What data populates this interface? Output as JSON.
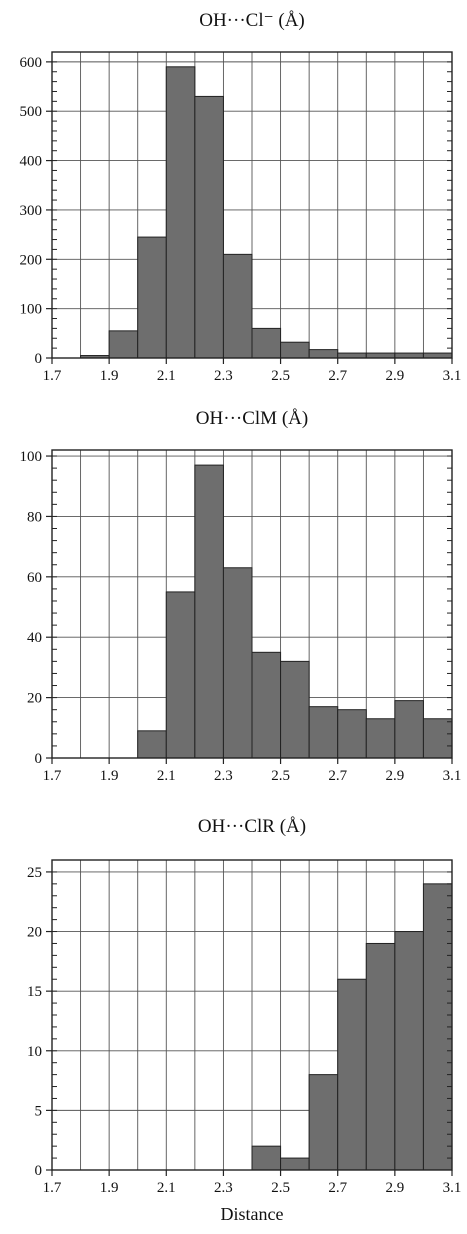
{
  "chart_data": [
    {
      "type": "bar",
      "title": "OH···Cl⁻ (Å)",
      "bin_edges": [
        1.7,
        1.8,
        1.9,
        2.0,
        2.1,
        2.2,
        2.3,
        2.4,
        2.5,
        2.6,
        2.7,
        2.8,
        2.9,
        3.0,
        3.1
      ],
      "values": [
        0,
        5,
        55,
        245,
        590,
        530,
        210,
        60,
        32,
        17,
        10,
        10,
        10,
        10
      ],
      "xlim": [
        1.7,
        3.1
      ],
      "ylim": [
        0,
        620
      ],
      "x_ticks": [
        "1.7",
        "1.9",
        "2.1",
        "2.3",
        "2.5",
        "2.7",
        "2.9",
        "3.1"
      ],
      "y_ticks": [
        "0",
        "100",
        "200",
        "300",
        "400",
        "500",
        "600"
      ],
      "xlabel": "",
      "ylabel": "",
      "grid": true
    },
    {
      "type": "bar",
      "title": "OH···ClM (Å)",
      "bin_edges": [
        1.7,
        1.8,
        1.9,
        2.0,
        2.1,
        2.2,
        2.3,
        2.4,
        2.5,
        2.6,
        2.7,
        2.8,
        2.9,
        3.0,
        3.1
      ],
      "values": [
        0,
        0,
        0,
        9,
        55,
        97,
        63,
        35,
        32,
        17,
        16,
        13,
        19,
        13
      ],
      "xlim": [
        1.7,
        3.1
      ],
      "ylim": [
        0,
        102
      ],
      "x_ticks": [
        "1.7",
        "1.9",
        "2.1",
        "2.3",
        "2.5",
        "2.7",
        "2.9",
        "3.1"
      ],
      "y_ticks": [
        "0",
        "20",
        "40",
        "60",
        "80",
        "100"
      ],
      "xlabel": "",
      "ylabel": "",
      "grid": true
    },
    {
      "type": "bar",
      "title": "OH···ClR (Å)",
      "bin_edges": [
        1.7,
        1.8,
        1.9,
        2.0,
        2.1,
        2.2,
        2.3,
        2.4,
        2.5,
        2.6,
        2.7,
        2.8,
        2.9,
        3.0,
        3.1
      ],
      "values": [
        0,
        0,
        0,
        0,
        0,
        0,
        0,
        2,
        1,
        8,
        16,
        19,
        20,
        24
      ],
      "xlim": [
        1.7,
        3.1
      ],
      "ylim": [
        0,
        26
      ],
      "x_ticks": [
        "1.7",
        "1.9",
        "2.1",
        "2.3",
        "2.5",
        "2.7",
        "2.9",
        "3.1"
      ],
      "y_ticks": [
        "0",
        "5",
        "10",
        "15",
        "20",
        "25"
      ],
      "xlabel": "Distance",
      "ylabel": "",
      "grid": true
    }
  ],
  "colors": {
    "bar_fill": "#6e6e6e",
    "bar_stroke": "#222222",
    "grid": "#555555",
    "axis": "#222222"
  }
}
